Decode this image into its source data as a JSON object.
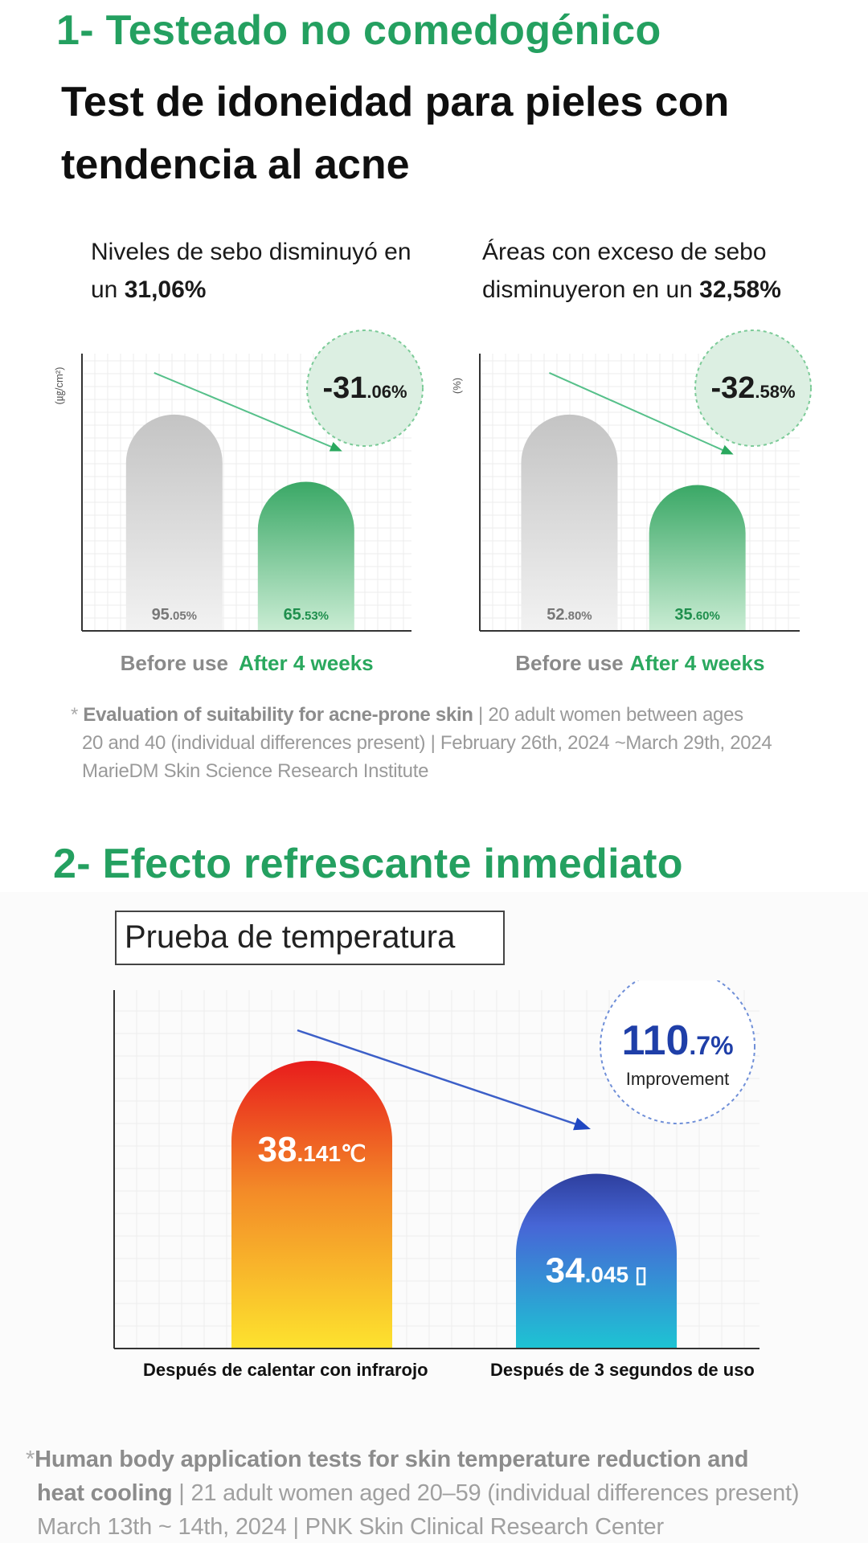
{
  "section1": {
    "heading": "1- Testeado no comedogénico",
    "subheading": "Test de idoneidad para pieles con tendencia al acne"
  },
  "claims": {
    "left_text": "Niveles de sebo disminuyó en un",
    "left_value": "31,06%",
    "right_text": "Áreas con exceso de sebo disminuyeron en un",
    "right_value": "32,58%"
  },
  "chart_data": [
    {
      "type": "bar",
      "ylabel": "(㎍/cm²)",
      "categories": [
        "Before use",
        "After 4 weeks"
      ],
      "values": [
        95.05,
        65.53
      ],
      "value_labels": [
        "95.05%",
        "65.53%"
      ],
      "badge": "-31.06%",
      "colors": [
        "#cfcfcf",
        "#3fb06a"
      ]
    },
    {
      "type": "bar",
      "ylabel": "(%)",
      "categories": [
        "Before use",
        "After 4 weeks"
      ],
      "values": [
        52.8,
        35.6
      ],
      "value_labels": [
        "52.80%",
        "35.60%"
      ],
      "badge": "-32.58%",
      "colors": [
        "#cfcfcf",
        "#3fb06a"
      ]
    },
    {
      "type": "bar",
      "title": "Prueba de temperatura",
      "categories": [
        "Después de calentar con infrarojo",
        "Después de 3 segundos de uso"
      ],
      "values": [
        38.141,
        34.045
      ],
      "value_labels": [
        "38.141℃",
        "34.045 ▯"
      ],
      "badge_value": "110.7%",
      "badge_label": "Improvement",
      "colors": [
        "#f0451f",
        "#2f5fd0"
      ]
    }
  ],
  "footnote1": {
    "bold": "Evaluation of suitability for acne-prone skin",
    "line1": " | 20 adult women between ages",
    "line2": "20 and 40 (individual differences present) | February 26th, 2024 ~March 29th, 2024",
    "line3": "MarieDM Skin Science Research Institute"
  },
  "section2": {
    "heading": "2- Efecto refrescante inmediato"
  },
  "footnote2": {
    "bold1": "Human body application tests for skin temperature reduction and",
    "bold2": "heat cooling",
    "rest2": " | 21 adult women aged 20–59 (individual differences present)",
    "line3": "March 13th ~ 14th, 2024 | PNK Skin Clinical Research Center"
  }
}
